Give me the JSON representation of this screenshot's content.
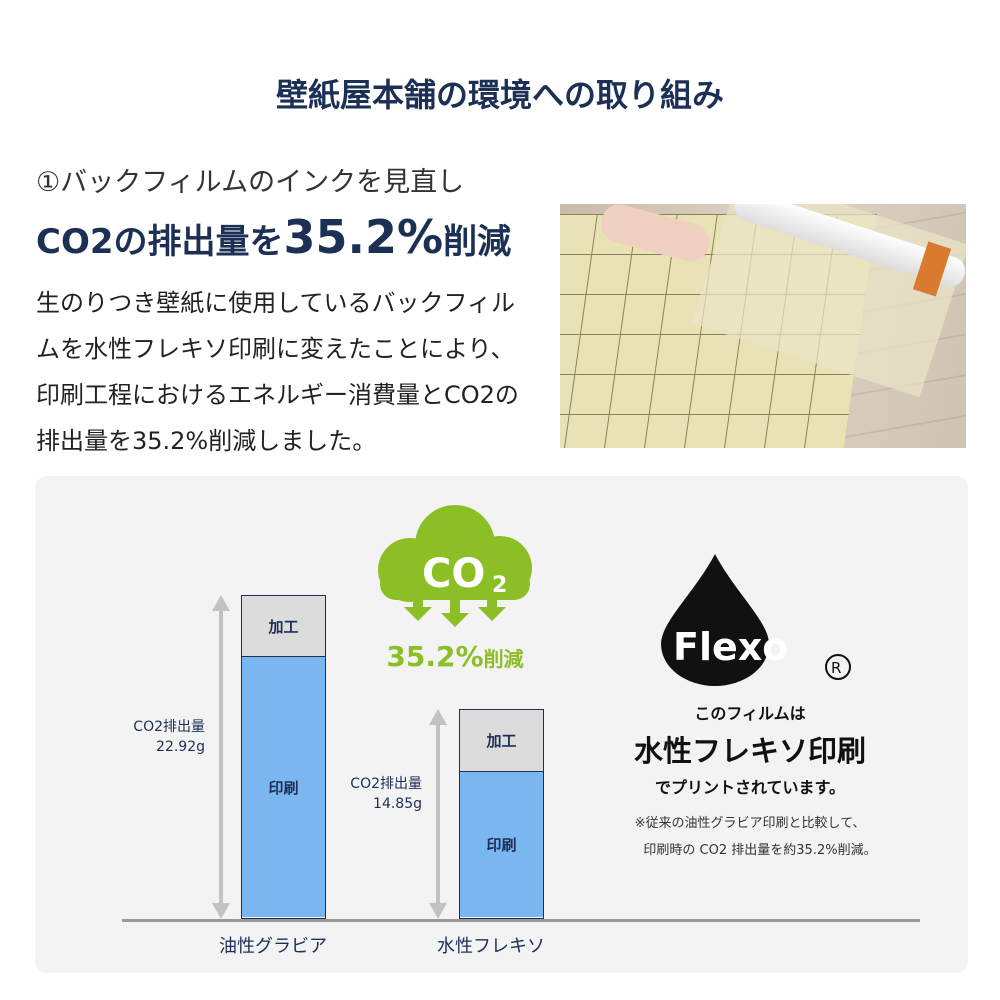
{
  "title": "壁紙屋本舗の環境への取り組み",
  "subtitle": "①バックフィルムのインクを見直し",
  "headline": {
    "pre": "CO2の排出量を",
    "big": "35.2%",
    "post": "削減"
  },
  "body": "生のりつき壁紙に使用しているバックフィルムを水性フレキソ印刷に変えたことにより、印刷工程におけるエネルギー消費量とCO2の排出量を35.2%削減しました。",
  "cloud": {
    "label": "CO",
    "sub": "2",
    "color": "#8cbf26"
  },
  "reduction": {
    "value": "35.2%",
    "suffix": "削減"
  },
  "flexo": {
    "logo": "Flexo",
    "reg": "®",
    "line1": "このフィルムは",
    "line2": "水性フレキソ印刷",
    "line3": "でプリントされています。",
    "note1": "※従来の油性グラビア印刷と比較して、",
    "note2": "印刷時の CO2 排出量を約35.2%削減。"
  },
  "chart_data": {
    "type": "bar",
    "stacked": true,
    "categories": [
      "油性グラビア",
      "水性フレキソ"
    ],
    "series": [
      {
        "name": "印刷",
        "values": [
          18.6,
          10.45
        ],
        "color": "#7ab6ef"
      },
      {
        "name": "加工",
        "values": [
          4.32,
          4.4
        ],
        "color": "#dcdcdc"
      }
    ],
    "totals": [
      22.92,
      14.85
    ],
    "total_labels": [
      {
        "line1": "CO2排出量",
        "line2": "22.92g"
      },
      {
        "line1": "CO2排出量",
        "line2": "14.85g"
      }
    ],
    "ylim": [
      0,
      22.92
    ]
  }
}
